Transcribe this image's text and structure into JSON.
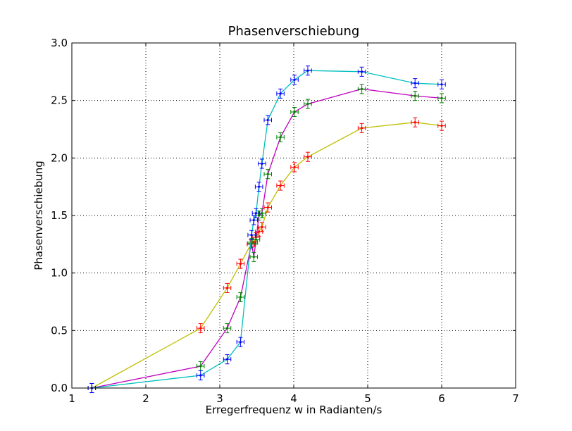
{
  "chart_data": {
    "type": "line",
    "title": "Phasenverschiebung",
    "xlabel": "Erregerfrequenz w in Radianten/s",
    "ylabel": "Phasenverschiebung",
    "xlim": [
      1,
      7
    ],
    "ylim": [
      0.0,
      3.0
    ],
    "xticks": [
      1,
      2,
      3,
      4,
      5,
      6,
      7
    ],
    "yticks": [
      0.0,
      0.5,
      1.0,
      1.5,
      2.0,
      2.5,
      3.0
    ],
    "xtick_labels": [
      "1",
      "2",
      "3",
      "4",
      "5",
      "6",
      "7"
    ],
    "ytick_labels": [
      "0.0",
      "0.5",
      "1.0",
      "1.5",
      "2.0",
      "2.5",
      "3.0"
    ],
    "grid": true,
    "series": [
      {
        "line_color": "#bfbf00",
        "marker_color": "#ff0000",
        "x": [
          1.27,
          2.74,
          3.1,
          3.28,
          3.42,
          3.46,
          3.49,
          3.53,
          3.57,
          3.65,
          3.82,
          4.01,
          4.19,
          4.92,
          5.64,
          6.0
        ],
        "y": [
          0.0,
          0.52,
          0.87,
          1.08,
          1.25,
          1.27,
          1.31,
          1.36,
          1.4,
          1.57,
          1.76,
          1.92,
          2.01,
          2.26,
          2.31,
          2.28
        ],
        "xerr": 0.05,
        "yerr": 0.04
      },
      {
        "line_color": "#bf00bf",
        "marker_color": "#008000",
        "x": [
          1.27,
          2.74,
          3.1,
          3.28,
          3.43,
          3.46,
          3.49,
          3.53,
          3.57,
          3.65,
          3.82,
          4.01,
          4.19,
          4.92,
          5.64,
          6.0
        ],
        "y": [
          0.0,
          0.19,
          0.52,
          0.79,
          1.26,
          1.14,
          1.29,
          1.5,
          1.52,
          1.86,
          2.18,
          2.4,
          2.47,
          2.6,
          2.54,
          2.52
        ],
        "xerr": 0.05,
        "yerr": 0.04
      },
      {
        "line_color": "#00bfbf",
        "marker_color": "#0000ff",
        "x": [
          1.27,
          2.74,
          3.1,
          3.28,
          3.43,
          3.46,
          3.49,
          3.53,
          3.57,
          3.65,
          3.82,
          4.01,
          4.19,
          4.92,
          5.64,
          6.0
        ],
        "y": [
          0.0,
          0.11,
          0.25,
          0.4,
          1.33,
          1.46,
          1.52,
          1.75,
          1.95,
          2.33,
          2.56,
          2.68,
          2.76,
          2.75,
          2.65,
          2.64
        ],
        "xerr": 0.05,
        "yerr": 0.04
      }
    ]
  }
}
